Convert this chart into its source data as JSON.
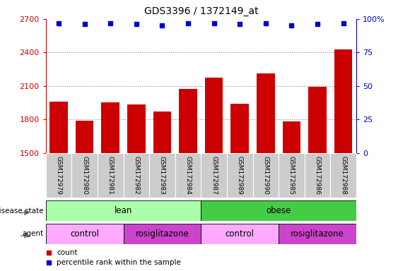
{
  "title": "GDS3396 / 1372149_at",
  "samples": [
    "GSM172979",
    "GSM172980",
    "GSM172981",
    "GSM172982",
    "GSM172983",
    "GSM172984",
    "GSM172987",
    "GSM172989",
    "GSM172990",
    "GSM172985",
    "GSM172986",
    "GSM172988"
  ],
  "counts": [
    1960,
    1790,
    1955,
    1935,
    1870,
    2075,
    2175,
    1940,
    2215,
    1785,
    2095,
    2430
  ],
  "percentile_ranks": [
    97,
    96,
    97,
    96,
    95,
    97,
    97,
    96,
    97,
    95,
    96,
    97
  ],
  "bar_color": "#cc0000",
  "dot_color": "#0000cc",
  "ylim_left": [
    1500,
    2700
  ],
  "ylim_right": [
    0,
    100
  ],
  "yticks_left": [
    1500,
    1800,
    2100,
    2400,
    2700
  ],
  "yticks_right": [
    0,
    25,
    50,
    75,
    100
  ],
  "lean_color": "#aaffaa",
  "obese_color": "#44cc44",
  "control_color": "#ffaaff",
  "rosiglitazone_color": "#cc44cc",
  "tick_label_bg": "#cccccc",
  "grid_color": "#888888",
  "left_axis_color": "#cc0000",
  "right_axis_color": "#0000cc",
  "label_arrow_color": "#888888"
}
